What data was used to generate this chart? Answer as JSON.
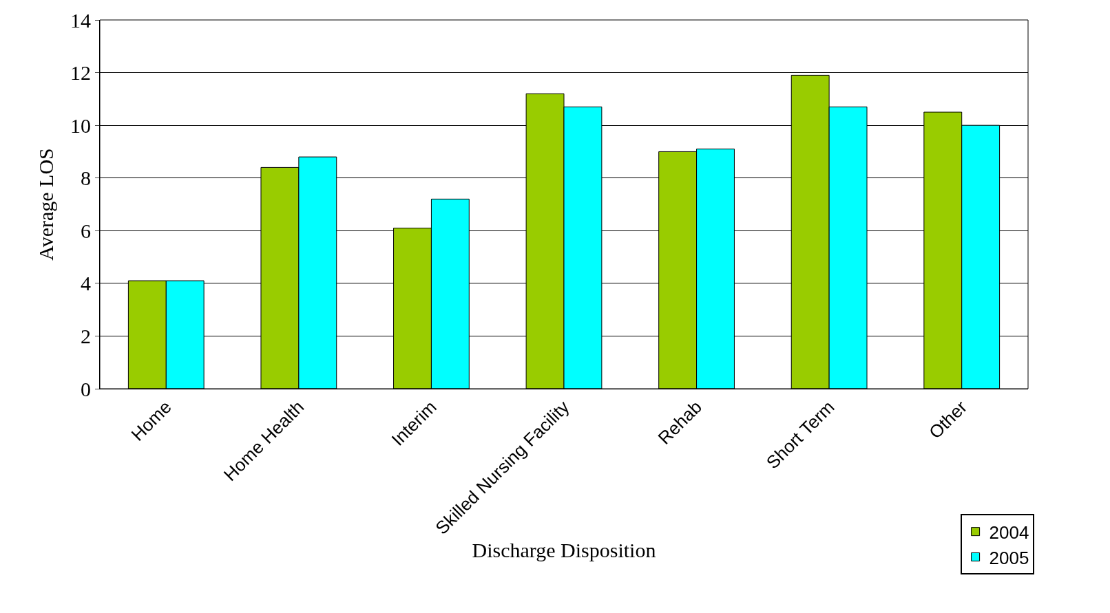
{
  "chart_data": {
    "type": "bar",
    "xlabel": "Discharge Disposition",
    "ylabel": "Average LOS",
    "categories": [
      "Home",
      "Home Health",
      "Interim",
      "Skilled Nursing Facility",
      "Rehab",
      "Short Term",
      "Other"
    ],
    "series": [
      {
        "name": "2004",
        "color": "#99cc00",
        "values": [
          4.1,
          8.4,
          6.1,
          11.2,
          9.0,
          11.9,
          10.5
        ]
      },
      {
        "name": "2005",
        "color": "#00ffff",
        "values": [
          4.1,
          8.8,
          7.2,
          10.7,
          9.1,
          10.7,
          10.0
        ]
      }
    ],
    "ylim": [
      0,
      14
    ],
    "yticks": [
      0,
      2,
      4,
      6,
      8,
      10,
      12,
      14
    ],
    "grid": "y",
    "legend": "bottom right"
  }
}
